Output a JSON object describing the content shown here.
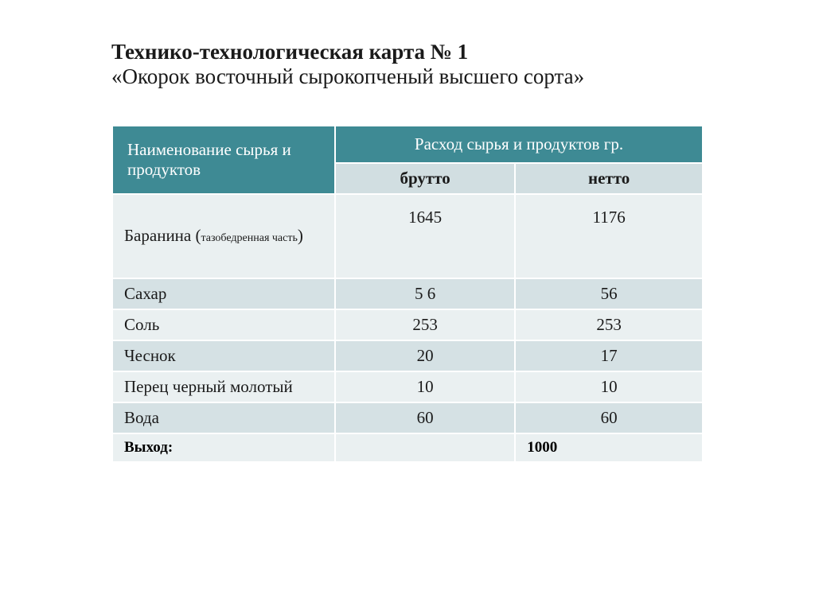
{
  "title": {
    "line1": "Технико-технологическая карта №  1",
    "line2": "«Окорок восточный сырокопченый высшего сорта»"
  },
  "table": {
    "header": {
      "name_column": "Наименование сырья и продуктов",
      "consumption_header": "Расход сырья и продуктов  гр.",
      "brutto": "брутто",
      "netto": "нетто"
    },
    "rows": [
      {
        "name_main": "Баранина (",
        "name_small": "тазобедренная часть",
        "name_end": ")",
        "brutto": "1645",
        "netto": "1176",
        "tall": true
      },
      {
        "name_main": "Сахар",
        "brutto": "5 6",
        "netto": "56"
      },
      {
        "name_main": "Соль",
        "brutto": "253",
        "netto": "253"
      },
      {
        "name_main": "Чеснок",
        "brutto": "20",
        "netto": "17"
      },
      {
        "name_main": "Перец черный молотый",
        "brutto": "10",
        "netto": "10"
      },
      {
        "name_main": "Вода",
        "brutto": "60",
        "netto": "60"
      }
    ],
    "footer": {
      "label": "Выход:",
      "value": "1000"
    }
  },
  "colors": {
    "header_bg": "#3e8a94",
    "header_text": "#ffffff",
    "subheader_bg": "#d1dee1",
    "row_odd_bg": "#eaf0f1",
    "row_even_bg": "#d5e1e4",
    "text": "#1a1a1a",
    "page_bg": "#ffffff"
  }
}
